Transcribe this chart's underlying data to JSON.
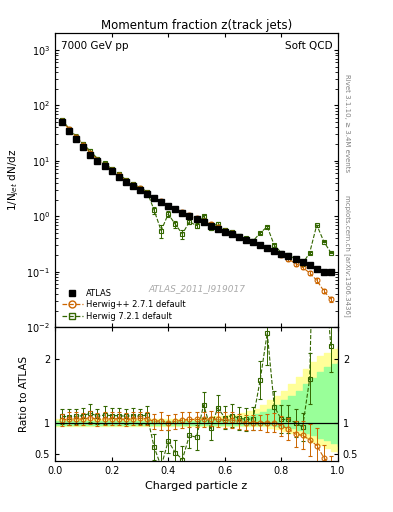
{
  "title_main": "Momentum fraction z(track jets)",
  "title_top_left": "7000 GeV pp",
  "title_top_right": "Soft QCD",
  "right_label_top": "Rivet 3.1.10, ≥ 3.4M events",
  "right_label_bottom": "mcplots.cern.ch [arXiv:1306.3436]",
  "watermark": "ATLAS_2011_I919017",
  "ylabel_main": "1/N$_{jet}$ dN/dz",
  "ylabel_ratio": "Ratio to ATLAS",
  "xlabel": "Charged particle z",
  "xlim": [
    0.0,
    1.0
  ],
  "ylim_main": [
    0.01,
    2000
  ],
  "ylim_ratio": [
    0.4,
    2.5
  ],
  "yticks_ratio": [
    0.5,
    1.0,
    2.0
  ],
  "atlas_x": [
    0.025,
    0.05,
    0.075,
    0.1,
    0.125,
    0.15,
    0.175,
    0.2,
    0.225,
    0.25,
    0.275,
    0.3,
    0.325,
    0.35,
    0.375,
    0.4,
    0.425,
    0.45,
    0.475,
    0.5,
    0.525,
    0.55,
    0.575,
    0.6,
    0.625,
    0.65,
    0.675,
    0.7,
    0.725,
    0.75,
    0.775,
    0.8,
    0.825,
    0.85,
    0.875,
    0.9,
    0.925,
    0.95,
    0.975
  ],
  "atlas_y": [
    50.0,
    35.0,
    25.0,
    18.0,
    13.0,
    10.0,
    8.0,
    6.5,
    5.2,
    4.2,
    3.5,
    3.0,
    2.5,
    2.1,
    1.8,
    1.55,
    1.35,
    1.15,
    1.0,
    0.88,
    0.78,
    0.68,
    0.6,
    0.53,
    0.47,
    0.42,
    0.38,
    0.34,
    0.3,
    0.27,
    0.24,
    0.21,
    0.19,
    0.17,
    0.15,
    0.13,
    0.11,
    0.1,
    0.1
  ],
  "atlas_yerr": [
    3.0,
    2.0,
    1.5,
    1.0,
    0.7,
    0.5,
    0.4,
    0.3,
    0.25,
    0.2,
    0.17,
    0.14,
    0.12,
    0.1,
    0.09,
    0.08,
    0.07,
    0.06,
    0.05,
    0.04,
    0.04,
    0.03,
    0.03,
    0.025,
    0.022,
    0.02,
    0.018,
    0.016,
    0.014,
    0.013,
    0.011,
    0.01,
    0.009,
    0.008,
    0.007,
    0.006,
    0.006,
    0.005,
    0.005
  ],
  "hw271_x": [
    0.025,
    0.05,
    0.075,
    0.1,
    0.125,
    0.15,
    0.175,
    0.2,
    0.225,
    0.25,
    0.275,
    0.3,
    0.325,
    0.35,
    0.375,
    0.4,
    0.425,
    0.45,
    0.475,
    0.5,
    0.525,
    0.55,
    0.575,
    0.6,
    0.625,
    0.65,
    0.675,
    0.7,
    0.725,
    0.75,
    0.775,
    0.8,
    0.825,
    0.85,
    0.875,
    0.9,
    0.925,
    0.95,
    0.975
  ],
  "hw271_y": [
    52.0,
    37.0,
    26.5,
    19.0,
    14.0,
    10.5,
    8.5,
    6.9,
    5.5,
    4.4,
    3.7,
    3.2,
    2.65,
    2.15,
    1.85,
    1.55,
    1.38,
    1.2,
    1.05,
    0.92,
    0.82,
    0.72,
    0.63,
    0.55,
    0.49,
    0.43,
    0.38,
    0.34,
    0.3,
    0.27,
    0.24,
    0.2,
    0.17,
    0.14,
    0.12,
    0.095,
    0.07,
    0.045,
    0.032
  ],
  "hw271_yerr": [
    4.0,
    3.0,
    2.0,
    1.5,
    1.0,
    0.8,
    0.6,
    0.5,
    0.4,
    0.32,
    0.28,
    0.24,
    0.2,
    0.17,
    0.14,
    0.12,
    0.1,
    0.09,
    0.08,
    0.07,
    0.06,
    0.055,
    0.05,
    0.044,
    0.039,
    0.034,
    0.03,
    0.027,
    0.024,
    0.022,
    0.019,
    0.016,
    0.014,
    0.011,
    0.01,
    0.008,
    0.006,
    0.004,
    0.003
  ],
  "hw721_x": [
    0.025,
    0.05,
    0.075,
    0.1,
    0.125,
    0.15,
    0.175,
    0.2,
    0.225,
    0.25,
    0.275,
    0.3,
    0.325,
    0.35,
    0.375,
    0.4,
    0.425,
    0.45,
    0.475,
    0.5,
    0.525,
    0.55,
    0.575,
    0.6,
    0.625,
    0.65,
    0.675,
    0.7,
    0.725,
    0.75,
    0.775,
    0.8,
    0.825,
    0.85,
    0.875,
    0.9,
    0.925,
    0.95,
    0.975
  ],
  "hw721_y": [
    55.0,
    38.0,
    27.5,
    20.0,
    15.0,
    11.0,
    9.0,
    7.2,
    5.8,
    4.6,
    3.9,
    3.3,
    2.8,
    1.3,
    0.55,
    1.1,
    0.72,
    0.48,
    0.8,
    0.68,
    1.0,
    0.62,
    0.74,
    0.57,
    0.52,
    0.45,
    0.4,
    0.36,
    0.5,
    0.65,
    0.3,
    0.22,
    0.2,
    0.17,
    0.14,
    0.22,
    0.7,
    0.35,
    0.22
  ],
  "hw721_yerr": [
    4.5,
    3.5,
    2.5,
    1.8,
    1.2,
    0.9,
    0.7,
    0.55,
    0.44,
    0.35,
    0.3,
    0.25,
    0.22,
    0.18,
    0.15,
    0.13,
    0.11,
    0.09,
    0.08,
    0.07,
    0.06,
    0.055,
    0.05,
    0.045,
    0.04,
    0.036,
    0.032,
    0.029,
    0.026,
    0.024,
    0.022,
    0.018,
    0.016,
    0.014,
    0.012,
    0.01,
    0.008,
    0.006,
    0.005
  ],
  "ratio_hw271_y": [
    1.04,
    1.06,
    1.06,
    1.055,
    1.08,
    1.05,
    1.06,
    1.06,
    1.06,
    1.05,
    1.06,
    1.07,
    1.06,
    1.02,
    1.03,
    1.0,
    1.02,
    1.04,
    1.05,
    1.05,
    1.05,
    1.06,
    1.05,
    1.04,
    1.04,
    1.02,
    1.0,
    1.0,
    1.0,
    1.0,
    1.0,
    0.95,
    0.9,
    0.82,
    0.8,
    0.73,
    0.64,
    0.45,
    0.32
  ],
  "ratio_hw271_yerr": [
    0.1,
    0.1,
    0.1,
    0.1,
    0.1,
    0.1,
    0.1,
    0.1,
    0.1,
    0.1,
    0.1,
    0.1,
    0.1,
    0.12,
    0.14,
    0.12,
    0.12,
    0.12,
    0.12,
    0.12,
    0.12,
    0.12,
    0.12,
    0.12,
    0.12,
    0.12,
    0.12,
    0.12,
    0.12,
    0.14,
    0.15,
    0.16,
    0.18,
    0.2,
    0.22,
    0.25,
    0.28,
    0.2,
    0.15
  ],
  "ratio_hw721_y": [
    1.1,
    1.09,
    1.1,
    1.11,
    1.15,
    1.1,
    1.12,
    1.11,
    1.11,
    1.1,
    1.11,
    1.1,
    1.12,
    0.62,
    0.31,
    0.71,
    0.53,
    0.42,
    0.8,
    0.77,
    1.28,
    0.91,
    1.23,
    1.08,
    1.11,
    1.07,
    1.05,
    1.06,
    1.67,
    2.41,
    1.25,
    1.05,
    1.05,
    1.0,
    0.93,
    1.69,
    6.36,
    3.5,
    2.2
  ],
  "ratio_hw721_yerr": [
    0.12,
    0.12,
    0.12,
    0.12,
    0.14,
    0.12,
    0.14,
    0.12,
    0.12,
    0.12,
    0.12,
    0.12,
    0.14,
    0.2,
    0.25,
    0.18,
    0.2,
    0.22,
    0.2,
    0.2,
    0.2,
    0.18,
    0.2,
    0.18,
    0.18,
    0.18,
    0.18,
    0.18,
    0.3,
    0.5,
    0.25,
    0.22,
    0.22,
    0.22,
    0.22,
    0.4,
    1.0,
    0.6,
    0.4
  ],
  "yellow_band_x": [
    0.0,
    0.025,
    0.05,
    0.075,
    0.1,
    0.125,
    0.15,
    0.175,
    0.2,
    0.225,
    0.25,
    0.275,
    0.3,
    0.325,
    0.35,
    0.375,
    0.4,
    0.425,
    0.45,
    0.475,
    0.5,
    0.525,
    0.55,
    0.575,
    0.6,
    0.625,
    0.65,
    0.675,
    0.7,
    0.725,
    0.75,
    0.775,
    0.8,
    0.825,
    0.85,
    0.875,
    0.9,
    0.925,
    0.95,
    0.975,
    1.0
  ],
  "yellow_band_lo": [
    0.94,
    0.94,
    0.94,
    0.94,
    0.94,
    0.94,
    0.94,
    0.94,
    0.94,
    0.94,
    0.94,
    0.94,
    0.94,
    0.94,
    0.94,
    0.94,
    0.94,
    0.94,
    0.94,
    0.94,
    0.94,
    0.94,
    0.94,
    0.94,
    0.94,
    0.94,
    0.94,
    0.94,
    0.94,
    0.94,
    0.92,
    0.9,
    0.87,
    0.84,
    0.8,
    0.76,
    0.7,
    0.65,
    0.6,
    0.55,
    0.5
  ],
  "yellow_band_hi": [
    1.06,
    1.06,
    1.06,
    1.06,
    1.06,
    1.06,
    1.06,
    1.06,
    1.06,
    1.06,
    1.06,
    1.06,
    1.06,
    1.06,
    1.06,
    1.06,
    1.06,
    1.06,
    1.06,
    1.06,
    1.08,
    1.08,
    1.1,
    1.1,
    1.12,
    1.12,
    1.15,
    1.18,
    1.22,
    1.28,
    1.35,
    1.42,
    1.5,
    1.6,
    1.72,
    1.85,
    1.95,
    2.05,
    2.1,
    2.15,
    2.2
  ],
  "green_band_x": [
    0.0,
    0.025,
    0.05,
    0.075,
    0.1,
    0.125,
    0.15,
    0.175,
    0.2,
    0.225,
    0.25,
    0.275,
    0.3,
    0.325,
    0.35,
    0.375,
    0.4,
    0.425,
    0.45,
    0.475,
    0.5,
    0.525,
    0.55,
    0.575,
    0.6,
    0.625,
    0.65,
    0.675,
    0.7,
    0.725,
    0.75,
    0.775,
    0.8,
    0.825,
    0.85,
    0.875,
    0.9,
    0.925,
    0.95,
    0.975,
    1.0
  ],
  "green_band_lo": [
    0.97,
    0.97,
    0.97,
    0.97,
    0.97,
    0.97,
    0.97,
    0.97,
    0.97,
    0.97,
    0.97,
    0.97,
    0.97,
    0.97,
    0.97,
    0.97,
    0.97,
    0.97,
    0.97,
    0.97,
    0.97,
    0.97,
    0.97,
    0.97,
    0.97,
    0.97,
    0.97,
    0.97,
    0.97,
    0.97,
    0.96,
    0.95,
    0.93,
    0.91,
    0.88,
    0.84,
    0.8,
    0.76,
    0.72,
    0.68,
    0.64
  ],
  "green_band_hi": [
    1.03,
    1.03,
    1.03,
    1.03,
    1.03,
    1.03,
    1.03,
    1.03,
    1.03,
    1.03,
    1.03,
    1.03,
    1.03,
    1.03,
    1.03,
    1.03,
    1.03,
    1.03,
    1.03,
    1.03,
    1.04,
    1.04,
    1.05,
    1.05,
    1.06,
    1.07,
    1.08,
    1.1,
    1.13,
    1.17,
    1.22,
    1.28,
    1.35,
    1.42,
    1.5,
    1.6,
    1.7,
    1.8,
    1.88,
    1.92,
    1.95
  ],
  "atlas_color": "#000000",
  "hw271_color": "#cc6600",
  "hw721_color": "#336600",
  "yellow_color": "#ffff99",
  "green_color": "#99ff99"
}
